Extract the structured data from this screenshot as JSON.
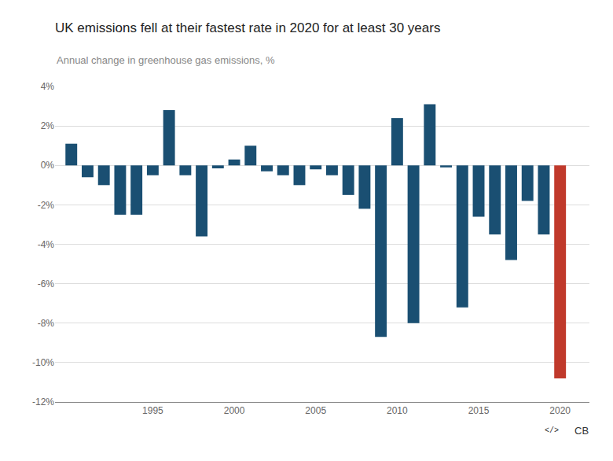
{
  "chart_data": {
    "type": "bar",
    "title": "UK emissions fell at their fastest rate in 2020 for at least 30 years",
    "subtitle": "Annual change in greenhouse gas emissions, %",
    "x": [
      1990,
      1991,
      1992,
      1993,
      1994,
      1995,
      1996,
      1997,
      1998,
      1999,
      2000,
      2001,
      2002,
      2003,
      2004,
      2005,
      2006,
      2007,
      2008,
      2009,
      2010,
      2011,
      2012,
      2013,
      2014,
      2015,
      2016,
      2017,
      2018,
      2019,
      2020
    ],
    "values": [
      1.1,
      -0.6,
      -1.0,
      -2.5,
      -2.5,
      -0.5,
      2.8,
      -0.5,
      -3.6,
      -0.15,
      0.3,
      1.0,
      -0.3,
      -0.5,
      -1.0,
      -0.2,
      -0.5,
      -1.5,
      -2.2,
      -8.7,
      2.4,
      -8.0,
      3.1,
      -0.1,
      -7.2,
      -2.6,
      -3.5,
      -4.8,
      -1.8,
      -3.5,
      -10.8
    ],
    "colors": [
      "#1a4f72",
      "#1a4f72",
      "#1a4f72",
      "#1a4f72",
      "#1a4f72",
      "#1a4f72",
      "#1a4f72",
      "#1a4f72",
      "#1a4f72",
      "#1a4f72",
      "#1a4f72",
      "#1a4f72",
      "#1a4f72",
      "#1a4f72",
      "#1a4f72",
      "#1a4f72",
      "#1a4f72",
      "#1a4f72",
      "#1a4f72",
      "#1a4f72",
      "#1a4f72",
      "#1a4f72",
      "#1a4f72",
      "#1a4f72",
      "#1a4f72",
      "#1a4f72",
      "#1a4f72",
      "#1a4f72",
      "#1a4f72",
      "#1a4f72",
      "#c0392b"
    ],
    "xlim": [
      1989.0,
      2021.8
    ],
    "xticks": [
      1995,
      2000,
      2005,
      2010,
      2015,
      2020
    ],
    "ylim": [
      -12,
      4
    ],
    "yticks": [
      {
        "value": -12,
        "label": "-12%"
      },
      {
        "value": -10,
        "label": "-10%"
      },
      {
        "value": -8,
        "label": "-8%"
      },
      {
        "value": -6,
        "label": "-6%"
      },
      {
        "value": -4,
        "label": "-4%"
      },
      {
        "value": -2,
        "label": "-2%"
      },
      {
        "value": 0,
        "label": "0%"
      },
      {
        "value": 2,
        "label": "2%"
      },
      {
        "value": 4,
        "label": "4%"
      }
    ],
    "grid": true,
    "annotations": [
      "</>",
      "CB"
    ]
  }
}
